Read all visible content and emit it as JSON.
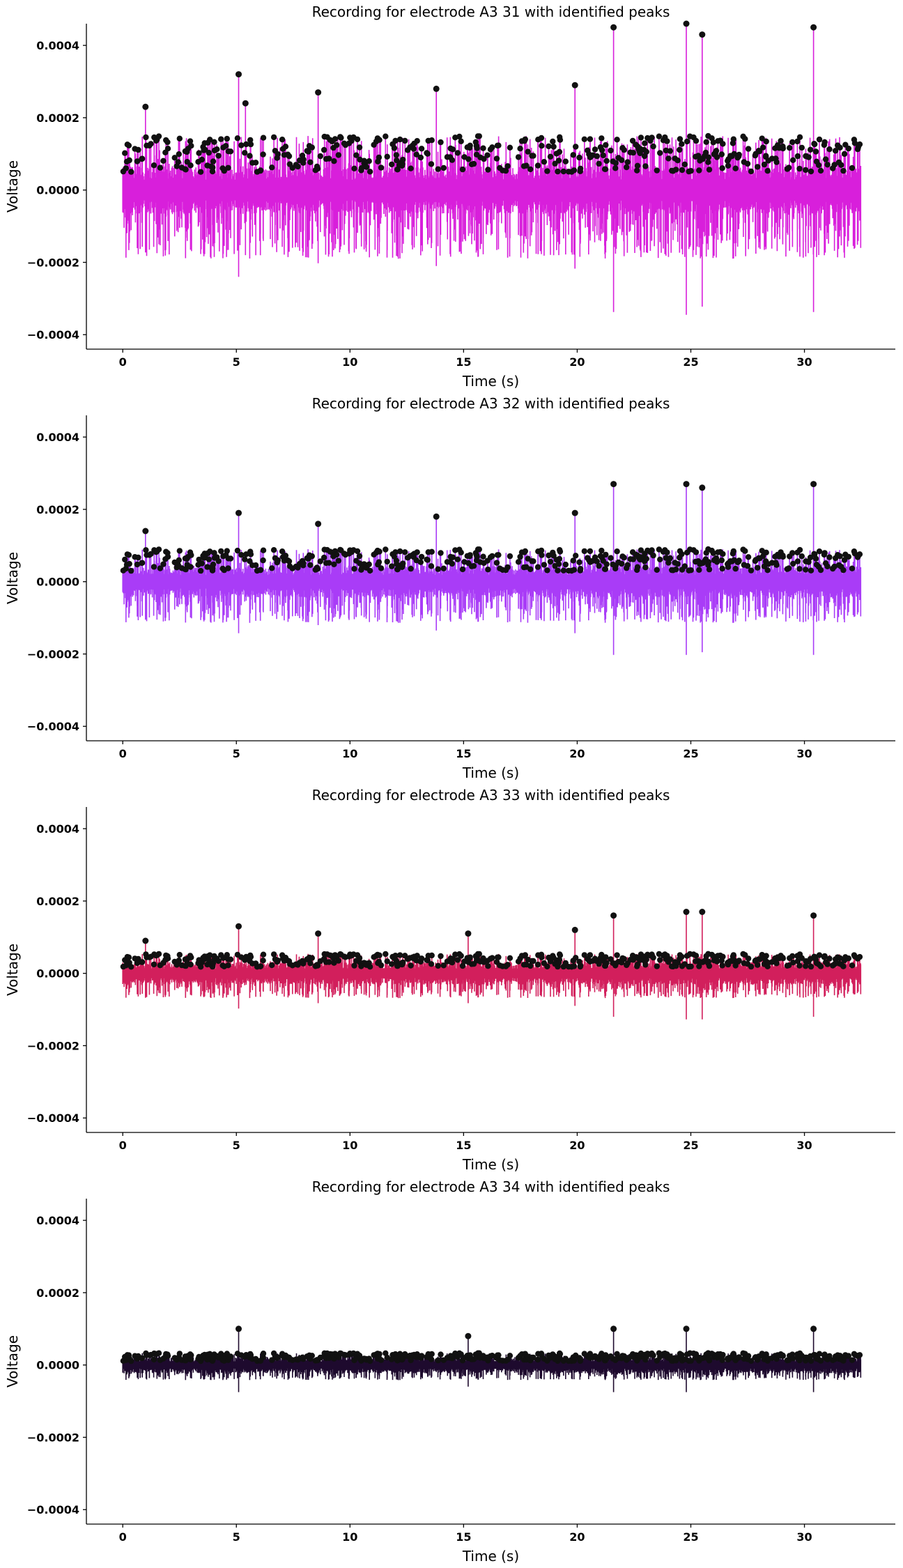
{
  "chart_data": [
    {
      "type": "line",
      "title": "Recording for electrode A3 31 with identified peaks",
      "xlabel": "Time (s)",
      "ylabel": "Voltage",
      "xlim": [
        -1.6,
        34
      ],
      "ylim": [
        -0.00044,
        0.00046
      ],
      "xticks": [
        0,
        5,
        10,
        15,
        20,
        25,
        30
      ],
      "xtick_labels": [
        "0",
        "5",
        "10",
        "15",
        "20",
        "25",
        "30"
      ],
      "yticks": [
        -0.0004,
        -0.0002,
        0.0,
        0.0002,
        0.0004
      ],
      "ytick_labels": [
        "−0.0004",
        "−0.0002",
        "0.0000",
        "0.0002",
        "0.0004"
      ],
      "color": "#D81FDB",
      "amplitude_scale": 1.0,
      "duration_s": 32.5,
      "series": [
        {
          "values_description": "signal",
          "peaks": {
            "x": [
              1.0,
              5.1,
              5.4,
              8.6,
              13.8,
              19.9,
              21.6,
              24.8,
              25.5,
              30.4
            ],
            "y": [
              0.00023,
              0.00032,
              0.00024,
              0.00027,
              0.00028,
              0.00029,
              0.00045,
              0.00046,
              0.00043,
              0.00045
            ]
          }
        }
      ]
    },
    {
      "type": "line",
      "title": "Recording for electrode A3 32 with identified peaks",
      "xlabel": "Time (s)",
      "ylabel": "Voltage",
      "xlim": [
        -1.6,
        34
      ],
      "ylim": [
        -0.00044,
        0.00046
      ],
      "xticks": [
        0,
        5,
        10,
        15,
        20,
        25,
        30
      ],
      "xtick_labels": [
        "0",
        "5",
        "10",
        "15",
        "20",
        "25",
        "30"
      ],
      "yticks": [
        -0.0004,
        -0.0002,
        0.0,
        0.0002,
        0.0004
      ],
      "ytick_labels": [
        "−0.0004",
        "−0.0002",
        "0.0000",
        "0.0002",
        "0.0004"
      ],
      "color": "#A93CF7",
      "amplitude_scale": 0.6,
      "duration_s": 32.5,
      "series": [
        {
          "values_description": "signal",
          "peaks": {
            "x": [
              1.0,
              5.1,
              8.6,
              13.8,
              19.9,
              21.6,
              24.8,
              25.5,
              30.4
            ],
            "y": [
              0.00014,
              0.00019,
              0.00016,
              0.00018,
              0.00019,
              0.00027,
              0.00027,
              0.00026,
              0.00027
            ]
          }
        }
      ]
    },
    {
      "type": "line",
      "title": "Recording for electrode A3 33 with identified peaks",
      "xlabel": "Time (s)",
      "ylabel": "Voltage",
      "xlim": [
        -1.6,
        34
      ],
      "ylim": [
        -0.00044,
        0.00046
      ],
      "xticks": [
        0,
        5,
        10,
        15,
        20,
        25,
        30
      ],
      "xtick_labels": [
        "0",
        "5",
        "10",
        "15",
        "20",
        "25",
        "30"
      ],
      "yticks": [
        -0.0004,
        -0.0002,
        0.0,
        0.0002,
        0.0004
      ],
      "ytick_labels": [
        "−0.0004",
        "−0.0002",
        "0.0000",
        "0.0002",
        "0.0004"
      ],
      "color": "#D21F5C",
      "amplitude_scale": 0.36,
      "duration_s": 32.5,
      "series": [
        {
          "values_description": "signal",
          "peaks": {
            "x": [
              1.0,
              5.1,
              8.6,
              15.2,
              19.9,
              21.6,
              24.8,
              25.5,
              30.4
            ],
            "y": [
              9e-05,
              0.00013,
              0.00011,
              0.00011,
              0.00012,
              0.00016,
              0.00017,
              0.00017,
              0.00016
            ]
          }
        }
      ]
    },
    {
      "type": "line",
      "title": "Recording for electrode A3 34 with identified peaks",
      "xlabel": "Time (s)",
      "ylabel": "Voltage",
      "xlim": [
        -1.6,
        34
      ],
      "ylim": [
        -0.00044,
        0.00046
      ],
      "xticks": [
        0,
        5,
        10,
        15,
        20,
        25,
        30
      ],
      "xtick_labels": [
        "0",
        "5",
        "10",
        "15",
        "20",
        "25",
        "30"
      ],
      "yticks": [
        -0.0004,
        -0.0002,
        0.0,
        0.0002,
        0.0004
      ],
      "ytick_labels": [
        "−0.0004",
        "−0.0002",
        "0.0000",
        "0.0002",
        "0.0004"
      ],
      "color": "#1E0A2E",
      "amplitude_scale": 0.22,
      "duration_s": 32.5,
      "series": [
        {
          "values_description": "signal",
          "peaks": {
            "x": [
              5.1,
              15.2,
              21.6,
              24.8,
              30.4
            ],
            "y": [
              0.0001,
              8e-05,
              0.0001,
              0.0001,
              0.0001
            ]
          }
        }
      ]
    }
  ]
}
